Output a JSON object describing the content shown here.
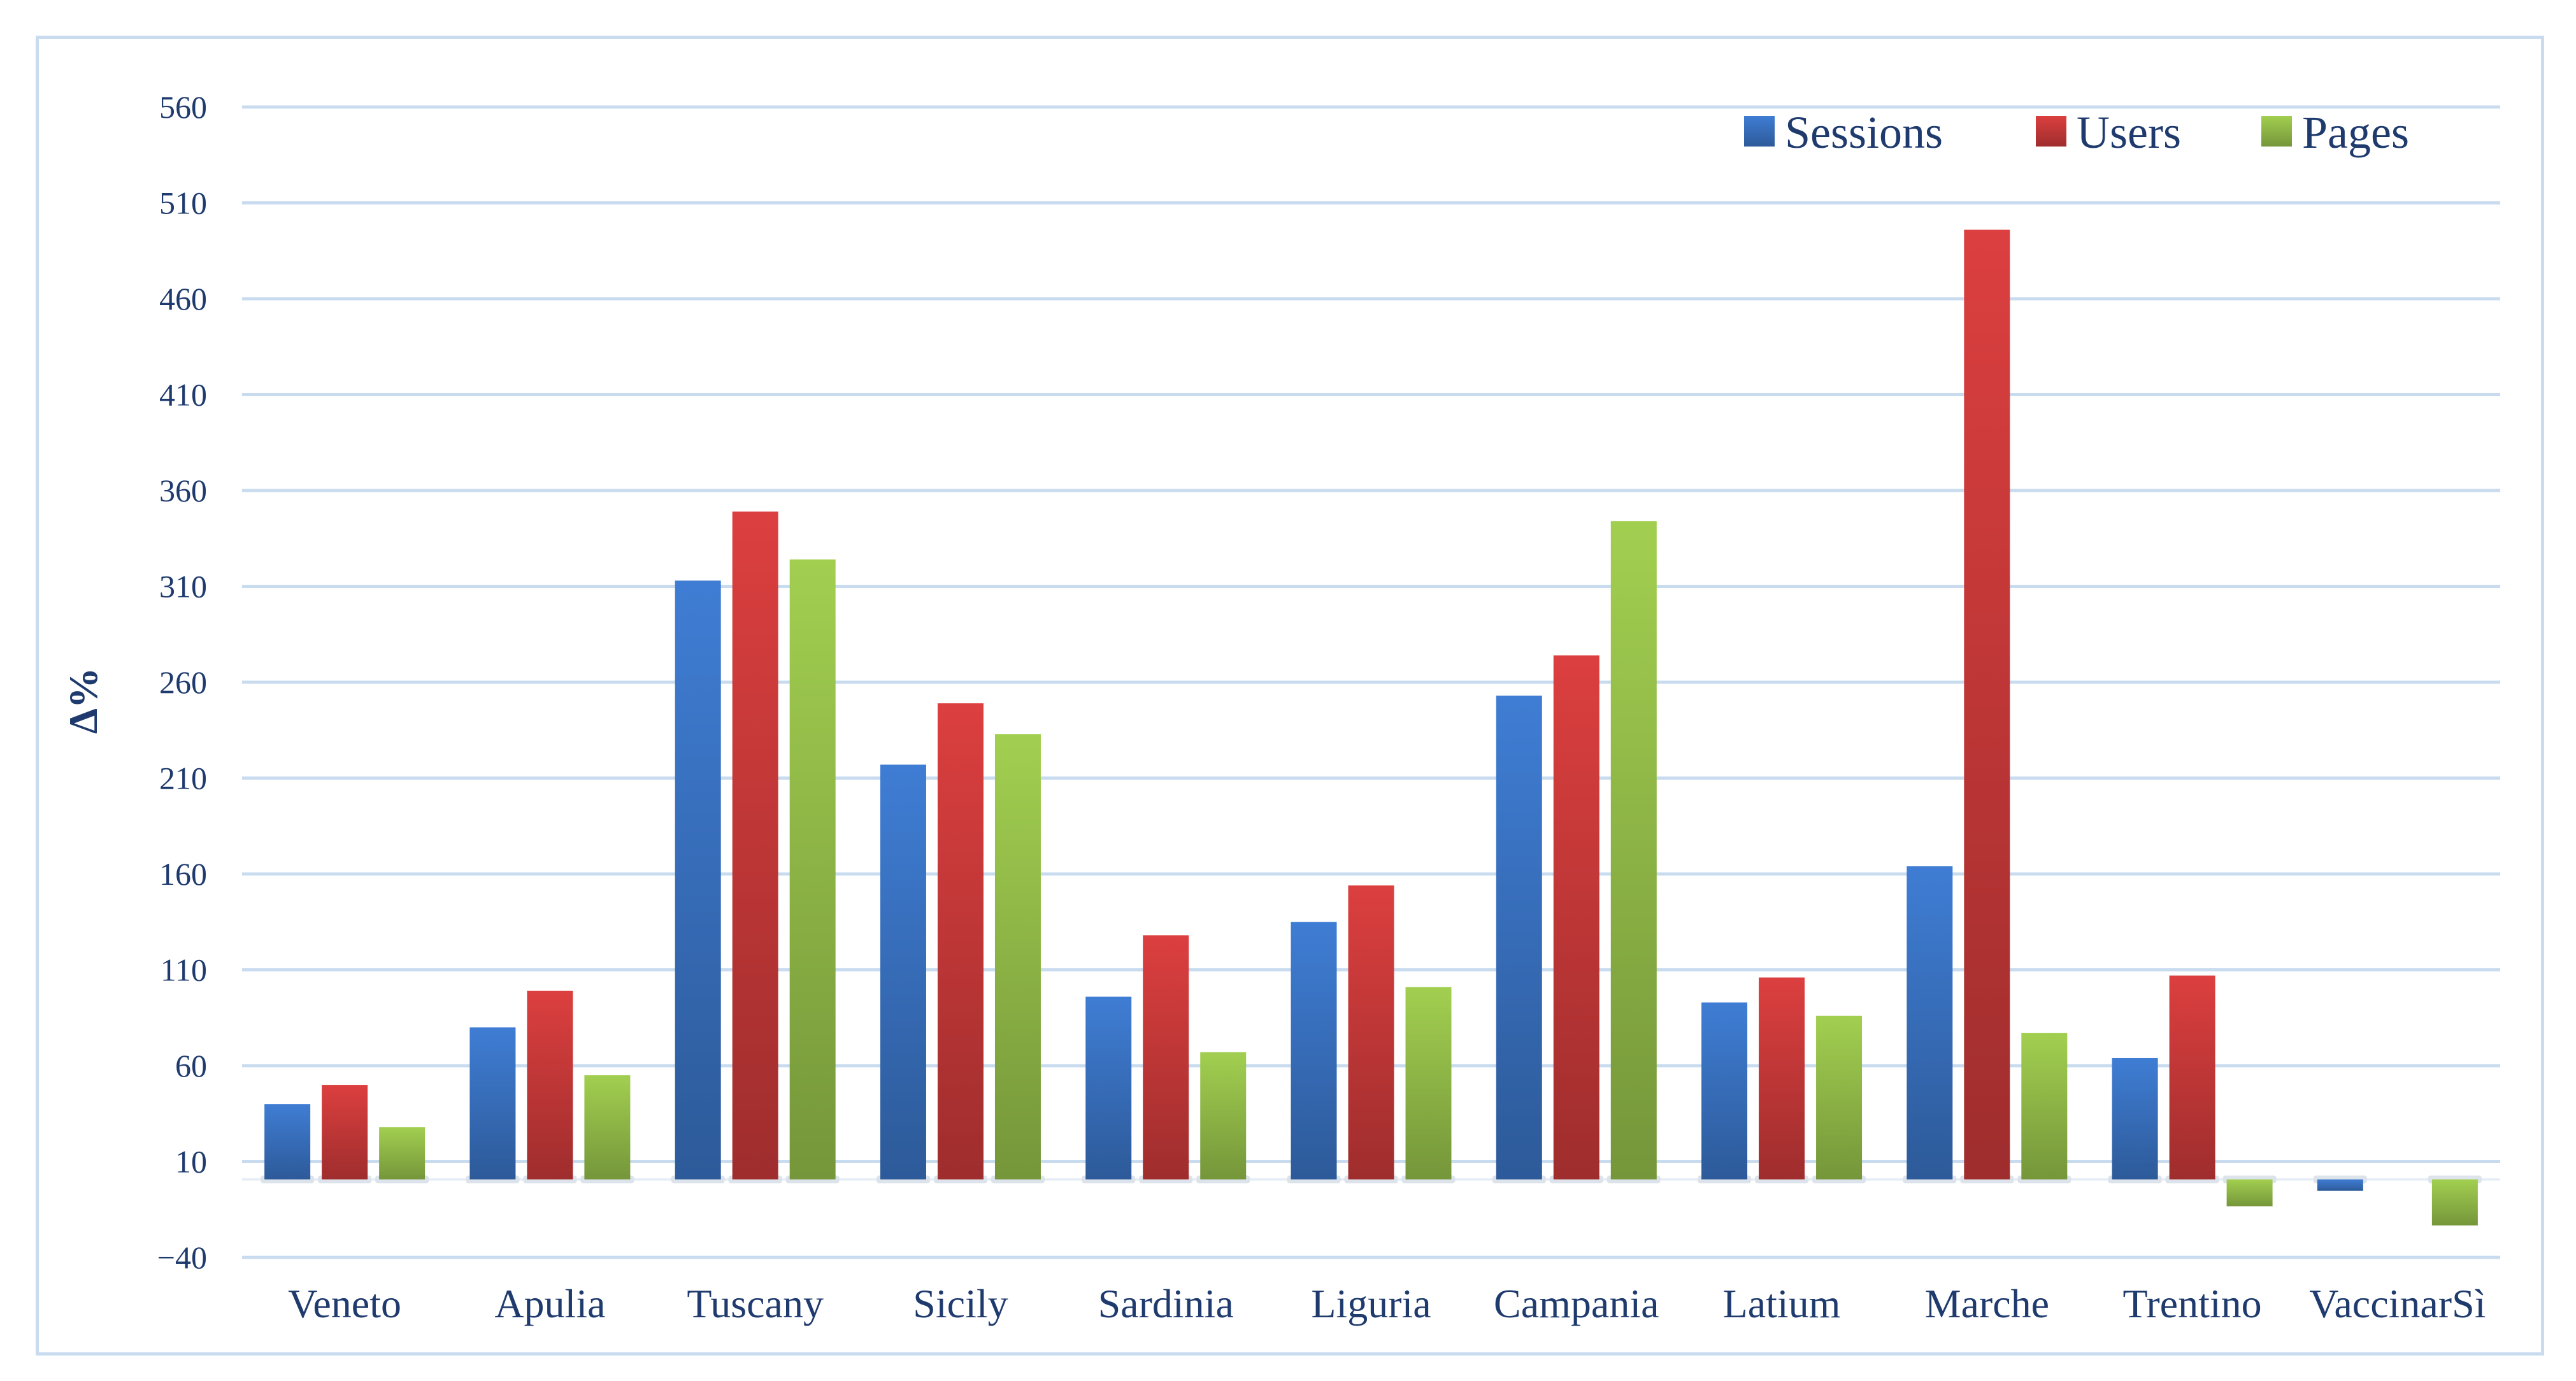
{
  "chart_data": {
    "type": "bar",
    "ylabel": "Δ%",
    "xlabel": "",
    "ylim": [
      -40,
      560
    ],
    "yticks": [
      560,
      510,
      460,
      410,
      360,
      310,
      260,
      210,
      160,
      110,
      60,
      10,
      -40
    ],
    "ytick_labels": [
      "560",
      "510",
      "460",
      "410",
      "360",
      "310",
      "260",
      "210",
      "160",
      "110",
      "60",
      "10",
      "−40"
    ],
    "grid": true,
    "legend_position": "top-right",
    "categories": [
      "Veneto",
      "Apulia",
      "Tuscany",
      "Sicily",
      "Sardinia",
      "Liguria",
      "Campania",
      "Latium",
      "Marche",
      "Trentino",
      "VaccinarSì"
    ],
    "series": [
      {
        "name": "Sessions",
        "color": "#3a74c4",
        "values": [
          40,
          80,
          313,
          217,
          96,
          135,
          253,
          93,
          164,
          64,
          -6
        ]
      },
      {
        "name": "Users",
        "color": "#cc3a3a",
        "values": [
          50,
          99,
          349,
          249,
          128,
          154,
          274,
          106,
          496,
          107,
          0
        ]
      },
      {
        "name": "Pages",
        "color": "#96c04a",
        "values": [
          28,
          55,
          324,
          233,
          67,
          101,
          344,
          86,
          77,
          -14,
          -24
        ]
      }
    ]
  }
}
